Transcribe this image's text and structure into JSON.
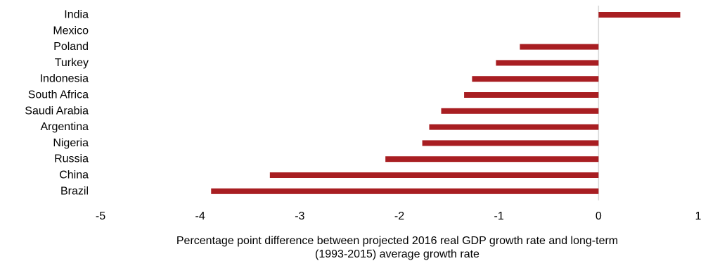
{
  "chart_data": {
    "type": "bar",
    "orientation": "horizontal",
    "categories": [
      "India",
      "Mexico",
      "Poland",
      "Turkey",
      "Indonesia",
      "South Africa",
      "Saudi Arabia",
      "Argentina",
      "Nigeria",
      "Russia",
      "China",
      "Brazil"
    ],
    "values": [
      0.82,
      0.0,
      -0.79,
      -1.03,
      -1.27,
      -1.35,
      -1.58,
      -1.7,
      -1.77,
      -2.14,
      -3.3,
      -3.89
    ],
    "xlabel": "Percentage point difference between projected 2016 real GDP growth rate and long-term (1993-2015) average growth rate",
    "xlabel_lines": [
      "Percentage point difference between projected 2016 real GDP growth rate and long-term",
      "(1993-2015) average growth rate"
    ],
    "ylabel": "",
    "xlim": [
      -5,
      1
    ],
    "xticks": [
      -5,
      -4,
      -3,
      -2,
      -1,
      0,
      1
    ],
    "xtick_labels": [
      "-5",
      "-4",
      "-3",
      "-2",
      "-1",
      "0",
      "1"
    ],
    "grid": false,
    "legend": "none",
    "bar_color": "#a81e22",
    "zero_line_color": "#d9d9d9"
  }
}
